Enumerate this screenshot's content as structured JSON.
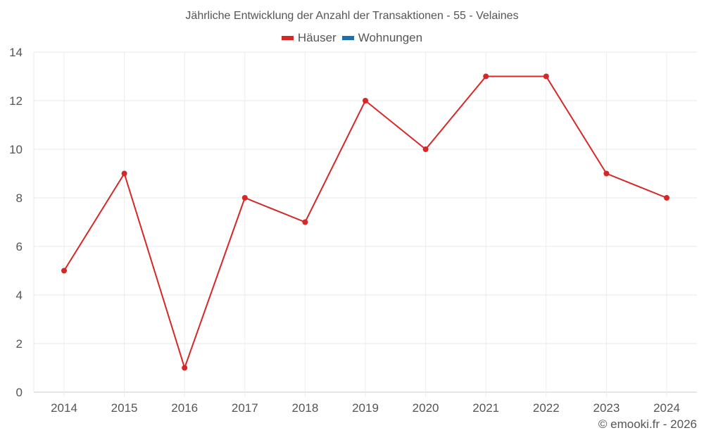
{
  "title": "Jährliche Entwicklung der Anzahl der Transaktionen - 55 - Velaines",
  "legend": [
    {
      "label": "Häuser",
      "color": "#d62728"
    },
    {
      "label": "Wohnungen",
      "color": "#1f6fae"
    }
  ],
  "credit": "© emooki.fr - 2026",
  "chart_data": {
    "type": "line",
    "title": "Jährliche Entwicklung der Anzahl der Transaktionen - 55 - Velaines",
    "xlabel": "",
    "ylabel": "",
    "categories": [
      "2014",
      "2015",
      "2016",
      "2017",
      "2018",
      "2019",
      "2020",
      "2021",
      "2022",
      "2023",
      "2024"
    ],
    "series": [
      {
        "name": "Häuser",
        "color": "#d62728",
        "values": [
          5,
          9,
          1,
          8,
          7,
          12,
          10,
          13,
          13,
          9,
          8
        ]
      },
      {
        "name": "Wohnungen",
        "color": "#1f6fae",
        "values": []
      }
    ],
    "ylim": [
      0,
      14
    ],
    "yticks": [
      0,
      2,
      4,
      6,
      8,
      10,
      12,
      14
    ],
    "grid": true,
    "legend_position": "top"
  }
}
